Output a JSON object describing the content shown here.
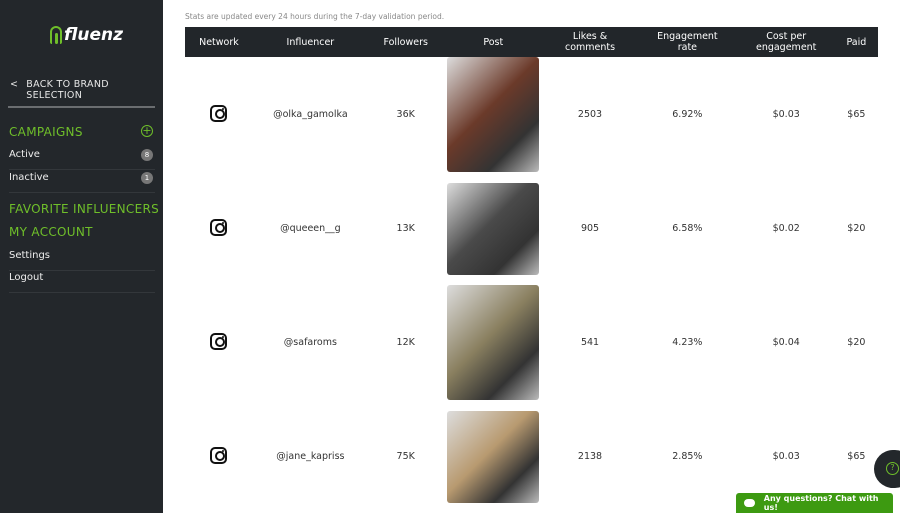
{
  "brand": {
    "name": "fluenz"
  },
  "sidebar": {
    "back": "BACK TO BRAND SELECTION",
    "campaigns": "CAMPAIGNS",
    "items": [
      {
        "label": "Active",
        "count": "8"
      },
      {
        "label": "Inactive",
        "count": "1"
      }
    ],
    "favorites": "FAVORITE INFLUENCERS",
    "account": "MY ACCOUNT",
    "settings": "Settings",
    "logout": "Logout"
  },
  "note": "Stats are updated every 24 hours during the 7-day validation period.",
  "table": {
    "headers": [
      "Network",
      "Influencer",
      "Followers",
      "Post",
      "Likes & comments",
      "Engagement rate",
      "Cost per engagement",
      "Paid"
    ],
    "rows": [
      {
        "network": "instagram-icon",
        "influencer": "@olka_gamolka",
        "followers": "36K",
        "likes": "2503",
        "engagement": "6.92%",
        "cpe": "$0.03",
        "paid": "$65",
        "color": "#6b3a2a"
      },
      {
        "network": "instagram-icon",
        "influencer": "@queeen__g",
        "followers": "13K",
        "likes": "905",
        "engagement": "6.58%",
        "cpe": "$0.02",
        "paid": "$20",
        "color": "#4a4a4a"
      },
      {
        "network": "instagram-icon",
        "influencer": "@safaroms",
        "followers": "12K",
        "likes": "541",
        "engagement": "4.23%",
        "cpe": "$0.04",
        "paid": "$20",
        "color": "#8a8060"
      },
      {
        "network": "instagram-icon",
        "influencer": "@jane_kapriss",
        "followers": "75K",
        "likes": "2138",
        "engagement": "2.85%",
        "cpe": "$0.03",
        "paid": "$65",
        "color": "#b89a70"
      }
    ]
  },
  "chat": {
    "label": "Any questions? Chat with us!"
  },
  "colors": {
    "accent": "#6fbf2a",
    "sidebar": "#23272b",
    "chat": "#3d9a11"
  }
}
